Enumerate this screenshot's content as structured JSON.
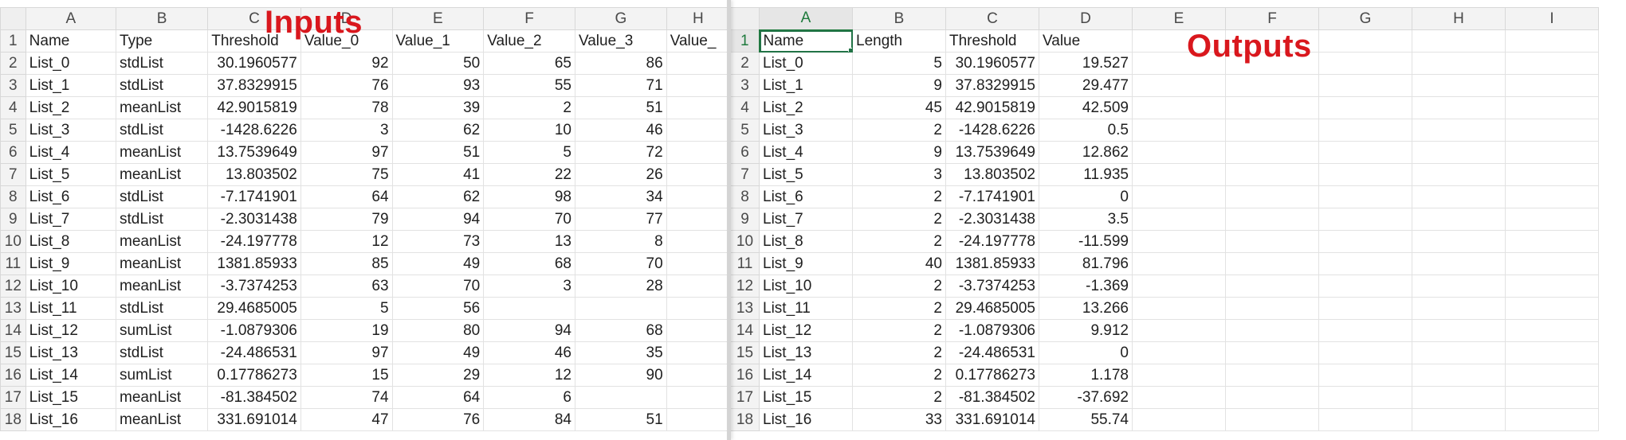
{
  "labels": {
    "inputs": "Inputs",
    "outputs": "Outputs"
  },
  "left_sheet": {
    "columns": [
      "A",
      "B",
      "C",
      "D",
      "E",
      "F",
      "G",
      "H"
    ],
    "rows": [
      [
        "1",
        "Name",
        "Type",
        "Threshold",
        "Value_0",
        "Value_1",
        "Value_2",
        "Value_3",
        "Value_"
      ],
      [
        "2",
        "List_0",
        "stdList",
        "30.1960577",
        "92",
        "50",
        "65",
        "86",
        ""
      ],
      [
        "3",
        "List_1",
        "stdList",
        "37.8329915",
        "76",
        "93",
        "55",
        "71",
        ""
      ],
      [
        "4",
        "List_2",
        "meanList",
        "42.9015819",
        "78",
        "39",
        "2",
        "51",
        ""
      ],
      [
        "5",
        "List_3",
        "stdList",
        "-1428.6226",
        "3",
        "62",
        "10",
        "46",
        ""
      ],
      [
        "6",
        "List_4",
        "meanList",
        "13.7539649",
        "97",
        "51",
        "5",
        "72",
        ""
      ],
      [
        "7",
        "List_5",
        "meanList",
        "13.803502",
        "75",
        "41",
        "22",
        "26",
        ""
      ],
      [
        "8",
        "List_6",
        "stdList",
        "-7.1741901",
        "64",
        "62",
        "98",
        "34",
        ""
      ],
      [
        "9",
        "List_7",
        "stdList",
        "-2.3031438",
        "79",
        "94",
        "70",
        "77",
        ""
      ],
      [
        "10",
        "List_8",
        "meanList",
        "-24.197778",
        "12",
        "73",
        "13",
        "8",
        ""
      ],
      [
        "11",
        "List_9",
        "meanList",
        "1381.85933",
        "85",
        "49",
        "68",
        "70",
        ""
      ],
      [
        "12",
        "List_10",
        "meanList",
        "-3.7374253",
        "63",
        "70",
        "3",
        "28",
        ""
      ],
      [
        "13",
        "List_11",
        "stdList",
        "29.4685005",
        "5",
        "56",
        "",
        "",
        ""
      ],
      [
        "14",
        "List_12",
        "sumList",
        "-1.0879306",
        "19",
        "80",
        "94",
        "68",
        ""
      ],
      [
        "15",
        "List_13",
        "stdList",
        "-24.486531",
        "97",
        "49",
        "46",
        "35",
        ""
      ],
      [
        "16",
        "List_14",
        "sumList",
        "0.17786273",
        "15",
        "29",
        "12",
        "90",
        ""
      ],
      [
        "17",
        "List_15",
        "meanList",
        "-81.384502",
        "74",
        "64",
        "6",
        "",
        ""
      ],
      [
        "18",
        "List_16",
        "meanList",
        "331.691014",
        "47",
        "76",
        "84",
        "51",
        ""
      ]
    ]
  },
  "right_sheet": {
    "columns": [
      "A",
      "B",
      "C",
      "D",
      "E",
      "F",
      "G",
      "H",
      "I"
    ],
    "rows": [
      [
        "1",
        "Name",
        "Length",
        "Threshold",
        "Value",
        "",
        "",
        "",
        "",
        ""
      ],
      [
        "2",
        "List_0",
        "5",
        "30.1960577",
        "19.527",
        "",
        "",
        "",
        "",
        ""
      ],
      [
        "3",
        "List_1",
        "9",
        "37.8329915",
        "29.477",
        "",
        "",
        "",
        "",
        ""
      ],
      [
        "4",
        "List_2",
        "45",
        "42.9015819",
        "42.509",
        "",
        "",
        "",
        "",
        ""
      ],
      [
        "5",
        "List_3",
        "2",
        "-1428.6226",
        "0.5",
        "",
        "",
        "",
        "",
        ""
      ],
      [
        "6",
        "List_4",
        "9",
        "13.7539649",
        "12.862",
        "",
        "",
        "",
        "",
        ""
      ],
      [
        "7",
        "List_5",
        "3",
        "13.803502",
        "11.935",
        "",
        "",
        "",
        "",
        ""
      ],
      [
        "8",
        "List_6",
        "2",
        "-7.1741901",
        "0",
        "",
        "",
        "",
        "",
        ""
      ],
      [
        "9",
        "List_7",
        "2",
        "-2.3031438",
        "3.5",
        "",
        "",
        "",
        "",
        ""
      ],
      [
        "10",
        "List_8",
        "2",
        "-24.197778",
        "-11.599",
        "",
        "",
        "",
        "",
        ""
      ],
      [
        "11",
        "List_9",
        "40",
        "1381.85933",
        "81.796",
        "",
        "",
        "",
        "",
        ""
      ],
      [
        "12",
        "List_10",
        "2",
        "-3.7374253",
        "-1.369",
        "",
        "",
        "",
        "",
        ""
      ],
      [
        "13",
        "List_11",
        "2",
        "29.4685005",
        "13.266",
        "",
        "",
        "",
        "",
        ""
      ],
      [
        "14",
        "List_12",
        "2",
        "-1.0879306",
        "9.912",
        "",
        "",
        "",
        "",
        ""
      ],
      [
        "15",
        "List_13",
        "2",
        "-24.486531",
        "0",
        "",
        "",
        "",
        "",
        ""
      ],
      [
        "16",
        "List_14",
        "2",
        "0.17786273",
        "1.178",
        "",
        "",
        "",
        "",
        ""
      ],
      [
        "17",
        "List_15",
        "2",
        "-81.384502",
        "-37.692",
        "",
        "",
        "",
        "",
        ""
      ],
      [
        "18",
        "List_16",
        "33",
        "331.691014",
        "55.74",
        "",
        "",
        "",
        "",
        ""
      ]
    ],
    "active_cell": "A1"
  },
  "colors": {
    "label_red": "#d9171d",
    "excel_green": "#217346"
  }
}
